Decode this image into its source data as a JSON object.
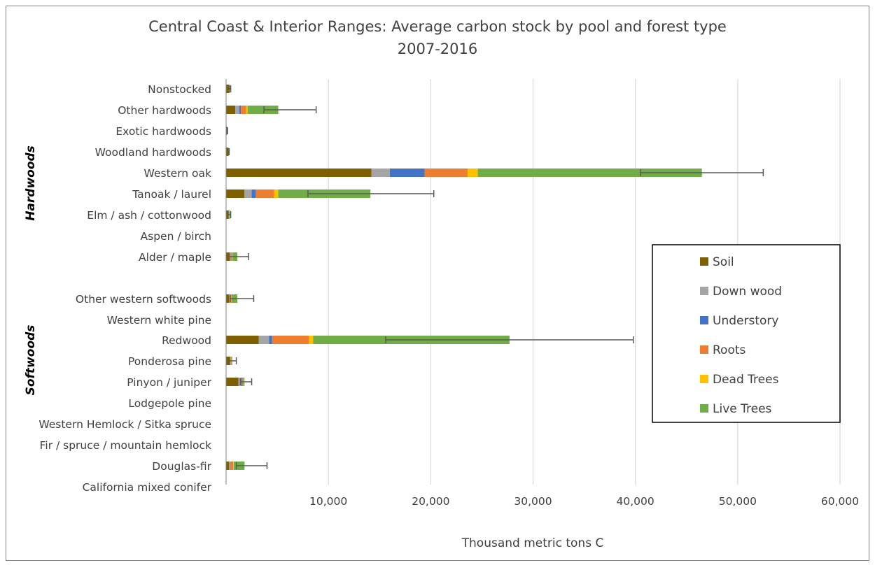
{
  "chart_data": {
    "type": "bar",
    "orientation": "horizontal",
    "stacked": true,
    "title": "Central Coast & Interior Ranges: Average carbon stock by pool and forest type",
    "subtitle": "2007-2016",
    "xlabel": "Thousand metric tons C",
    "ylabel": "",
    "xlim": [
      0,
      60000
    ],
    "xticks": [
      10000,
      20000,
      30000,
      40000,
      50000,
      60000
    ],
    "xtick_labels": [
      "10,000",
      "20,000",
      "30,000",
      "40,000",
      "50,000",
      "60,000"
    ],
    "grid": "vertical",
    "legend_position": "right",
    "groups": [
      {
        "label": "Hardwoods",
        "categories": [
          "Nonstocked",
          "Other hardwoods",
          "Exotic hardwoods",
          "Woodland hardwoods",
          "Western oak",
          "Tanoak / laurel",
          "Elm / ash / cottonwood",
          "Aspen / birch",
          "Alder / maple"
        ]
      },
      {
        "label": "Softwoods",
        "categories": [
          "Other western softwoods",
          "Western white pine",
          "Redwood",
          "Ponderosa pine",
          "Pinyon / juniper",
          "Lodgepole pine",
          "Western Hemlock / Sitka spruce",
          "Fir / spruce / mountain hemlock",
          "Douglas-fir",
          "California mixed conifer"
        ]
      }
    ],
    "categories": [
      "Nonstocked",
      "Other hardwoods",
      "Exotic hardwoods",
      "Woodland hardwoods",
      "Western oak",
      "Tanoak / laurel",
      "Elm / ash / cottonwood",
      "Aspen / birch",
      "Alder / maple",
      "Other western softwoods",
      "Western white pine",
      "Redwood",
      "Ponderosa pine",
      "Pinyon / juniper",
      "Lodgepole pine",
      "Western Hemlock / Sitka spruce",
      "Fir / spruce / mountain hemlock",
      "Douglas-fir",
      "California mixed conifer"
    ],
    "series": [
      {
        "name": "Soil",
        "color": "#7f6000",
        "values": [
          300,
          900,
          80,
          200,
          14200,
          1800,
          250,
          0,
          350,
          300,
          0,
          3200,
          400,
          1200,
          0,
          0,
          0,
          300,
          0
        ]
      },
      {
        "name": "Down wood",
        "color": "#a5a5a5",
        "values": [
          30,
          400,
          10,
          20,
          1800,
          700,
          30,
          0,
          60,
          50,
          0,
          1000,
          60,
          300,
          0,
          0,
          0,
          80,
          0
        ]
      },
      {
        "name": "Understory",
        "color": "#4472c4",
        "values": [
          10,
          150,
          5,
          10,
          3400,
          400,
          10,
          0,
          20,
          20,
          0,
          300,
          10,
          100,
          0,
          0,
          0,
          20,
          0
        ]
      },
      {
        "name": "Roots",
        "color": "#ed7d31",
        "values": [
          10,
          500,
          5,
          10,
          4200,
          1800,
          30,
          0,
          150,
          150,
          0,
          3600,
          40,
          100,
          0,
          0,
          0,
          300,
          0
        ]
      },
      {
        "name": "Dead Trees",
        "color": "#ffc000",
        "values": [
          5,
          150,
          2,
          5,
          1000,
          400,
          10,
          0,
          50,
          30,
          0,
          400,
          10,
          20,
          0,
          0,
          0,
          50,
          0
        ]
      },
      {
        "name": "Live Trees",
        "color": "#70ad47",
        "values": [
          30,
          3000,
          10,
          30,
          21900,
          9000,
          70,
          0,
          470,
          550,
          0,
          19200,
          80,
          80,
          0,
          0,
          0,
          1050,
          0
        ]
      }
    ],
    "error_bars": [
      [
        300,
        450
      ],
      [
        3700,
        8800
      ],
      [
        80,
        140
      ],
      [
        200,
        300
      ],
      [
        40500,
        52500
      ],
      [
        8000,
        20300
      ],
      [
        200,
        450
      ],
      null,
      [
        300,
        2200
      ],
      [
        400,
        2700
      ],
      null,
      [
        15600,
        39800
      ],
      [
        300,
        1000
      ],
      [
        1400,
        2500
      ],
      null,
      null,
      null,
      [
        1000,
        4000
      ],
      null
    ]
  }
}
